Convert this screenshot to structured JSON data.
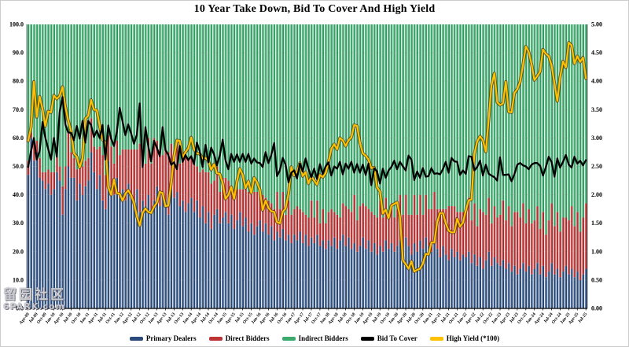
{
  "watermark": {
    "line1": "留园社区",
    "line2": "6PARK.com"
  },
  "chart_data": {
    "type": "combo",
    "title": "10 Year Take Down, Bid To Cover And High Yield",
    "xlabel": "",
    "ylabel_left": "",
    "ylabel_right": "",
    "x_interval": "monthly auctions, Apr-2009 to Jul-2025",
    "x_tick_labels": [
      "Apr-09",
      "Jul-09",
      "Oct-09",
      "Jan-10",
      "Apr-10",
      "Jul-10",
      "Oct-10",
      "Jan-11",
      "Apr-11",
      "Jul-11",
      "Oct-11",
      "Jan-12",
      "Apr-12",
      "Jul-12",
      "Oct-12",
      "Jan-13",
      "Apr-13",
      "Jul-13",
      "Oct-13",
      "Jan-14",
      "Apr-14",
      "Jul-14",
      "Oct-14",
      "Jan-15",
      "Apr-15",
      "Jul-15",
      "Oct-15",
      "Jan-16",
      "Apr-16",
      "Jul-16",
      "Oct-16",
      "Jan-17",
      "Apr-17",
      "Jul-17",
      "Oct-17",
      "Jan-18",
      "Apr-18",
      "Jul-18",
      "Oct-18",
      "Jan-19",
      "Apr-19",
      "Jul-19",
      "Oct-19",
      "Jan-20",
      "Apr-20",
      "Jul-20",
      "Oct-20",
      "Jan-21",
      "Apr-21",
      "Jul-21",
      "Oct-21",
      "Jan-22",
      "Apr-22",
      "Jul-22",
      "Oct-22",
      "Jan-23",
      "Apr-23",
      "Jul-23",
      "Oct-23",
      "Jan-24",
      "Apr-24",
      "Jul-24",
      "Oct-24",
      "Jan-25",
      "Apr-25",
      "Jul-25"
    ],
    "left_axis": {
      "range": [
        0,
        100
      ],
      "ticks": [
        "0.0",
        "10.0",
        "20.0",
        "30.0",
        "40.0",
        "50.0",
        "60.0",
        "70.0",
        "80.0",
        "90.0",
        "100.0"
      ]
    },
    "right_axis": {
      "range": [
        0,
        5
      ],
      "ticks": [
        "0.00",
        "0.50",
        "1.00",
        "1.50",
        "2.00",
        "2.50",
        "3.00",
        "3.50",
        "4.00",
        "4.50",
        "5.00"
      ]
    },
    "grid": "horizontal dotted every 10 (left axis)",
    "legend_position": "bottom center",
    "series": [
      {
        "name": "Primary Dealers",
        "type": "stacked-bar",
        "axis": "left",
        "color": "#2B4B7C",
        "values": [
          47,
          60,
          52,
          55,
          46,
          45,
          42,
          44,
          40,
          42,
          48,
          45,
          33,
          42,
          50,
          46,
          46,
          38,
          44,
          40,
          43,
          45,
          55,
          48,
          42,
          47,
          38,
          35,
          52,
          43,
          40,
          46,
          39,
          42,
          38,
          44,
          40,
          36,
          42,
          34,
          38,
          36,
          40,
          35,
          38,
          43,
          36,
          40,
          38,
          33,
          42,
          39,
          41,
          36,
          38,
          34,
          37,
          39,
          34,
          38,
          32,
          36,
          30,
          34,
          28,
          33,
          35,
          30,
          32,
          34,
          30,
          33,
          28,
          31,
          34,
          29,
          32,
          27,
          30,
          26,
          29,
          31,
          27,
          30,
          26,
          29,
          24,
          27,
          25,
          28,
          24,
          26,
          23,
          26,
          24,
          27,
          23,
          26,
          22,
          25,
          23,
          26,
          22,
          24,
          21,
          24,
          22,
          25,
          21,
          24,
          26,
          22,
          25,
          21,
          23,
          20,
          22,
          25,
          21,
          24,
          20,
          23,
          19,
          22,
          20,
          24,
          21,
          23,
          20,
          22,
          24,
          21,
          25,
          22,
          19,
          23,
          20,
          24,
          21,
          25,
          22,
          20,
          23,
          21,
          18,
          22,
          19,
          17,
          21,
          18,
          20,
          17,
          19,
          18,
          20,
          16,
          19,
          15,
          18,
          14,
          17,
          20,
          15,
          18,
          16,
          15,
          17,
          14,
          16,
          13,
          15,
          12,
          14,
          16,
          13,
          15,
          12,
          14,
          16,
          12,
          15,
          11,
          13,
          16,
          12,
          14,
          11,
          13,
          15,
          12,
          14,
          11,
          13,
          10,
          12,
          14
        ]
      },
      {
        "name": "Direct Bidders",
        "type": "stacked-bar",
        "axis": "left",
        "color": "#BE3334",
        "values": [
          5,
          2,
          6,
          4,
          7,
          3,
          6,
          5,
          8,
          6,
          9,
          5,
          10,
          8,
          12,
          9,
          7,
          11,
          8,
          10,
          9,
          8,
          12,
          9,
          14,
          10,
          16,
          12,
          9,
          14,
          11,
          13,
          15,
          14,
          18,
          12,
          16,
          20,
          14,
          24,
          18,
          15,
          20,
          16,
          22,
          16,
          20,
          14,
          18,
          22,
          16,
          13,
          18,
          15,
          17,
          20,
          16,
          14,
          17,
          12,
          16,
          13,
          18,
          14,
          16,
          12,
          15,
          11,
          14,
          12,
          15,
          10,
          14,
          11,
          8,
          13,
          10,
          14,
          11,
          15,
          12,
          10,
          13,
          9,
          12,
          8,
          11,
          14,
          10,
          13,
          9,
          12,
          10,
          9,
          12,
          8,
          11,
          7,
          10,
          13,
          9,
          12,
          8,
          11,
          9,
          10,
          13,
          9,
          12,
          8,
          11,
          14,
          10,
          13,
          17,
          11,
          14,
          12,
          15,
          11,
          14,
          10,
          13,
          16,
          12,
          15,
          11,
          14,
          12,
          13,
          16,
          12,
          15,
          11,
          14,
          17,
          13,
          16,
          12,
          15,
          13,
          15,
          18,
          14,
          17,
          13,
          16,
          19,
          15,
          18,
          14,
          17,
          15,
          16,
          19,
          15,
          18,
          14,
          17,
          20,
          16,
          19,
          15,
          18,
          16,
          18,
          21,
          17,
          20,
          16,
          19,
          22,
          18,
          21,
          17,
          20,
          18,
          17,
          20,
          16,
          19,
          15,
          18,
          21,
          17,
          20,
          16,
          19,
          17,
          19,
          22,
          18,
          21,
          17,
          20,
          23
        ]
      },
      {
        "name": "Indirect Bidders",
        "type": "stacked-bar",
        "axis": "left",
        "color": "#3BAA6C",
        "values": [
          48,
          38,
          42,
          41,
          47,
          52,
          52,
          51,
          52,
          52,
          43,
          50,
          57,
          50,
          38,
          45,
          47,
          51,
          48,
          50,
          48,
          47,
          33,
          43,
          44,
          43,
          46,
          53,
          39,
          43,
          49,
          41,
          46,
          44,
          44,
          44,
          44,
          44,
          44,
          42,
          44,
          49,
          40,
          49,
          40,
          41,
          44,
          46,
          44,
          45,
          42,
          48,
          41,
          49,
          45,
          46,
          47,
          47,
          49,
          50,
          52,
          51,
          52,
          52,
          56,
          55,
          50,
          59,
          54,
          54,
          55,
          57,
          58,
          58,
          58,
          58,
          58,
          59,
          59,
          59,
          59,
          59,
          60,
          61,
          62,
          63,
          65,
          59,
          65,
          59,
          67,
          62,
          67,
          65,
          64,
          65,
          66,
          67,
          68,
          62,
          68,
          62,
          70,
          65,
          70,
          66,
          65,
          66,
          67,
          68,
          63,
          64,
          65,
          66,
          60,
          69,
          64,
          63,
          64,
          65,
          66,
          67,
          68,
          62,
          68,
          61,
          68,
          63,
          68,
          65,
          60,
          67,
          60,
          67,
          67,
          60,
          67,
          60,
          67,
          60,
          65,
          65,
          59,
          65,
          65,
          65,
          65,
          64,
          64,
          64,
          66,
          66,
          66,
          66,
          61,
          69,
          63,
          71,
          65,
          66,
          67,
          61,
          70,
          64,
          68,
          67,
          62,
          69,
          64,
          71,
          66,
          66,
          68,
          63,
          70,
          65,
          70,
          69,
          64,
          72,
          66,
          74,
          69,
          63,
          71,
          66,
          73,
          68,
          68,
          69,
          64,
          71,
          66,
          73,
          68,
          63
        ]
      },
      {
        "name": "Bid To Cover",
        "type": "line",
        "axis": "right",
        "color": "#000000",
        "values": [
          2.49,
          2.77,
          3.0,
          2.62,
          2.77,
          3.28,
          3.01,
          2.81,
          2.62,
          3.0,
          2.67,
          3.45,
          3.72,
          3.24,
          3.1,
          3.09,
          2.96,
          3.21,
          2.99,
          3.3,
          2.92,
          3.3,
          3.23,
          3.02,
          3.13,
          3.0,
          3.23,
          2.62,
          3.22,
          2.99,
          2.86,
          3.11,
          3.53,
          3.29,
          3.05,
          3.24,
          3.08,
          2.9,
          3.06,
          3.61,
          2.49,
          3.19,
          2.86,
          2.59,
          2.95,
          2.83,
          2.68,
          3.19,
          2.79,
          2.7,
          2.53,
          2.57,
          2.45,
          2.86,
          2.58,
          2.7,
          2.61,
          2.68,
          2.54,
          2.92,
          2.76,
          2.49,
          2.88,
          2.57,
          2.83,
          2.71,
          2.52,
          2.69,
          2.97,
          2.61,
          2.45,
          2.72,
          2.58,
          2.71,
          2.58,
          2.72,
          2.58,
          2.72,
          2.55,
          2.64,
          2.57,
          2.56,
          2.49,
          2.75,
          2.56,
          2.7,
          2.91,
          2.33,
          2.43,
          2.65,
          2.53,
          2.22,
          2.39,
          2.43,
          2.29,
          2.55,
          2.41,
          2.64,
          2.46,
          2.31,
          2.46,
          2.28,
          2.54,
          2.37,
          2.5,
          2.57,
          2.34,
          2.5,
          2.46,
          2.58,
          2.36,
          2.55,
          2.46,
          2.58,
          2.39,
          2.54,
          2.39,
          2.53,
          2.35,
          2.55,
          2.17,
          2.47,
          2.41,
          2.2,
          2.46,
          2.3,
          2.43,
          2.49,
          2.6,
          2.45,
          2.58,
          2.5,
          2.43,
          2.69,
          2.62,
          2.26,
          2.41,
          2.3,
          2.47,
          2.32,
          2.33,
          2.47,
          2.37,
          2.38,
          2.36,
          2.45,
          2.58,
          2.39,
          2.65,
          2.59,
          2.58,
          2.35,
          2.43,
          2.37,
          2.68,
          2.67,
          2.43,
          2.49,
          2.6,
          2.34,
          2.53,
          2.37,
          2.34,
          2.31,
          2.25,
          2.66,
          2.35,
          2.35,
          2.36,
          2.24,
          2.36,
          2.53,
          2.56,
          2.52,
          2.5,
          2.45,
          2.53,
          2.56,
          2.56,
          2.51,
          2.34,
          2.49,
          2.67,
          2.58,
          2.32,
          2.64,
          2.48,
          2.58,
          2.7,
          2.53,
          2.48,
          2.67,
          2.55,
          2.6,
          2.52,
          2.61
        ]
      },
      {
        "name": "High Yield (*100)",
        "type": "line",
        "axis": "right",
        "color": "#FFC000",
        "values": [
          2.95,
          3.19,
          3.99,
          3.37,
          3.73,
          3.52,
          3.21,
          3.47,
          3.45,
          3.75,
          3.69,
          3.74,
          3.9,
          3.55,
          3.31,
          3.12,
          2.73,
          2.67,
          2.48,
          2.64,
          3.34,
          3.39,
          3.67,
          3.5,
          3.49,
          3.21,
          2.97,
          2.92,
          2.14,
          2.0,
          2.27,
          2.03,
          2.02,
          1.9,
          2.02,
          2.08,
          1.99,
          1.86,
          1.62,
          1.46,
          1.68,
          1.76,
          1.7,
          1.68,
          1.79,
          1.86,
          2.05,
          2.03,
          1.8,
          1.81,
          2.21,
          2.67,
          2.96,
          2.95,
          2.66,
          2.75,
          2.82,
          3.01,
          2.8,
          2.73,
          2.72,
          2.64,
          2.65,
          2.6,
          2.44,
          2.54,
          2.38,
          2.37,
          2.21,
          1.93,
          2.0,
          2.14,
          1.93,
          2.24,
          2.46,
          2.35,
          2.12,
          2.24,
          2.03,
          2.3,
          2.22,
          2.09,
          1.73,
          1.9,
          1.77,
          1.71,
          1.7,
          1.52,
          1.5,
          1.7,
          1.76,
          2.02,
          2.49,
          2.34,
          2.41,
          2.56,
          2.33,
          2.4,
          2.2,
          2.33,
          2.25,
          2.18,
          2.35,
          2.31,
          2.38,
          2.58,
          2.81,
          2.89,
          2.8,
          3.0,
          2.96,
          2.86,
          2.96,
          3.01,
          3.23,
          3.21,
          2.92,
          2.73,
          2.69,
          2.62,
          2.47,
          2.48,
          2.13,
          2.06,
          1.67,
          1.74,
          1.59,
          1.81,
          1.84,
          1.87,
          1.62,
          0.85,
          0.78,
          0.7,
          0.83,
          0.65,
          0.68,
          0.7,
          0.79,
          0.96,
          0.95,
          1.16,
          1.16,
          1.52,
          1.68,
          1.68,
          1.5,
          1.37,
          1.34,
          1.34,
          1.58,
          1.44,
          1.51,
          1.72,
          1.9,
          1.92,
          2.72,
          2.94,
          3.03,
          2.96,
          2.76,
          3.33,
          3.93,
          4.14,
          3.63,
          3.58,
          3.61,
          3.99,
          3.46,
          3.45,
          3.79,
          3.86,
          3.99,
          4.29,
          4.61,
          4.52,
          4.3,
          4.02,
          4.09,
          4.17,
          4.56,
          4.48,
          4.44,
          4.28,
          3.96,
          3.65,
          4.07,
          4.35,
          4.24,
          4.68,
          4.63,
          4.31,
          4.44,
          4.34,
          4.42,
          4.05
        ]
      }
    ]
  }
}
